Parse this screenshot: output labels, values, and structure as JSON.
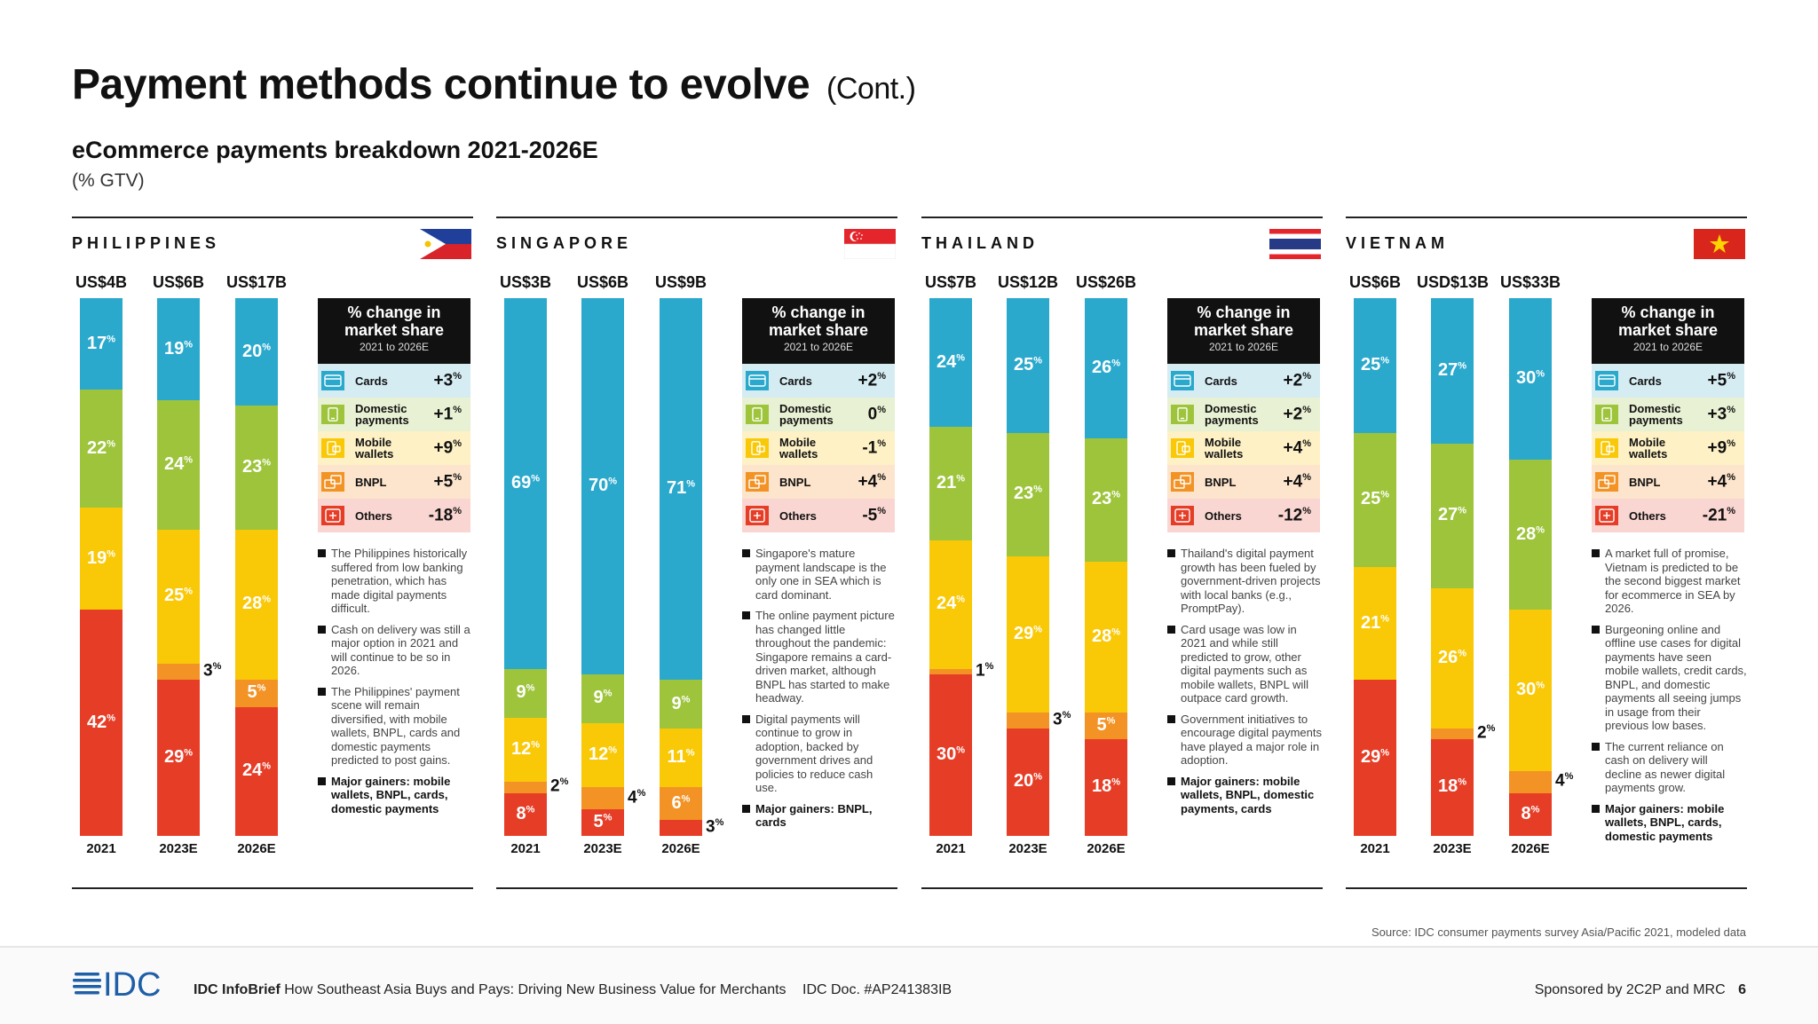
{
  "title": "Payment methods continue to evolve",
  "title_suffix": "(Cont.)",
  "subtitle": "eCommerce payments breakdown 2021-2026E",
  "unit_note": "(% GTV)",
  "colors": {
    "cards": "#2aa9cc",
    "domestic": "#9dc43b",
    "wallets": "#f9c806",
    "bnpl": "#f39325",
    "others": "#e63d27"
  },
  "legend_header": {
    "line1": "% change in",
    "line2": "market share",
    "range": "2021 to 2026E"
  },
  "legend_labels": [
    {
      "key": "cards",
      "line1": "Cards",
      "line2": ""
    },
    {
      "key": "domestic",
      "line1": "Domestic",
      "line2": "payments"
    },
    {
      "key": "wallets",
      "line1": "Mobile",
      "line2": "wallets"
    },
    {
      "key": "bnpl",
      "line1": "BNPL",
      "line2": ""
    },
    {
      "key": "others",
      "line1": "Others",
      "line2": ""
    }
  ],
  "chart_data": [
    {
      "type": "bar",
      "stacked": true,
      "country": "PHILIPPINES",
      "flag": "PH",
      "categories": [
        "2021",
        "2023E",
        "2026E"
      ],
      "gtv": [
        "US$4B",
        "US$6B",
        "US$17B"
      ],
      "series": [
        {
          "name": "Cards",
          "values": [
            17,
            19,
            20
          ]
        },
        {
          "name": "Domestic payments",
          "values": [
            22,
            24,
            23
          ]
        },
        {
          "name": "Mobile wallets",
          "values": [
            19,
            25,
            28
          ]
        },
        {
          "name": "BNPL",
          "values": [
            0,
            3,
            5
          ]
        },
        {
          "name": "Others",
          "values": [
            42,
            29,
            24
          ]
        }
      ],
      "change": [
        "+3",
        "+1",
        "+9",
        "+5",
        "-18"
      ],
      "notes": [
        {
          "text": "The Philippines historically suffered from low banking penetration, which has made digital payments difficult.",
          "bold": false
        },
        {
          "text": "Cash on delivery was still a major option in 2021 and will continue to be so in 2026.",
          "bold": false
        },
        {
          "text": "The Philippines' payment scene will remain diversified, with mobile wallets, BNPL, cards and domestic payments predicted to post gains.",
          "bold": false
        },
        {
          "text": "Major gainers: mobile wallets, BNPL, cards, domestic payments",
          "bold": true
        }
      ]
    },
    {
      "type": "bar",
      "stacked": true,
      "country": "SINGAPORE",
      "flag": "SG",
      "categories": [
        "2021",
        "2023E",
        "2026E"
      ],
      "gtv": [
        "US$3B",
        "US$6B",
        "US$9B"
      ],
      "series": [
        {
          "name": "Cards",
          "values": [
            69,
            70,
            71
          ]
        },
        {
          "name": "Domestic payments",
          "values": [
            9,
            9,
            9
          ]
        },
        {
          "name": "Mobile wallets",
          "values": [
            12,
            12,
            11
          ]
        },
        {
          "name": "BNPL",
          "values": [
            2,
            4,
            6
          ]
        },
        {
          "name": "Others",
          "values": [
            8,
            5,
            3
          ]
        }
      ],
      "change": [
        "+2",
        "0",
        "-1",
        "+4",
        "-5"
      ],
      "notes": [
        {
          "text": "Singapore's mature payment landscape is the only one in SEA which is card dominant.",
          "bold": false
        },
        {
          "text": "The online payment picture has changed little throughout the pandemic: Singapore remains a card-driven market, although BNPL has started to make headway.",
          "bold": false
        },
        {
          "text": "Digital payments will continue to grow in adoption, backed by government drives and policies to reduce cash use.",
          "bold": false
        },
        {
          "text": "Major gainers: BNPL, cards",
          "bold": true
        }
      ]
    },
    {
      "type": "bar",
      "stacked": true,
      "country": "THAILAND",
      "flag": "TH",
      "categories": [
        "2021",
        "2023E",
        "2026E"
      ],
      "gtv": [
        "US$7B",
        "US$12B",
        "US$26B"
      ],
      "series": [
        {
          "name": "Cards",
          "values": [
            24,
            25,
            26
          ]
        },
        {
          "name": "Domestic payments",
          "values": [
            21,
            23,
            23
          ]
        },
        {
          "name": "Mobile wallets",
          "values": [
            24,
            29,
            28
          ]
        },
        {
          "name": "BNPL",
          "values": [
            1,
            3,
            5
          ]
        },
        {
          "name": "Others",
          "values": [
            30,
            20,
            18
          ]
        }
      ],
      "change": [
        "+2",
        "+2",
        "+4",
        "+4",
        "-12"
      ],
      "notes": [
        {
          "text": "Thailand's digital payment growth has been fueled by government-driven projects with local banks (e.g., PromptPay).",
          "bold": false
        },
        {
          "text": "Card usage was low in 2021 and while still predicted to grow, other digital payments such as mobile wallets, BNPL will outpace card growth.",
          "bold": false
        },
        {
          "text": "Government initiatives to encourage digital payments have played a major role in adoption.",
          "bold": false
        },
        {
          "text": "Major gainers: mobile wallets, BNPL, domestic payments, cards",
          "bold": true
        }
      ]
    },
    {
      "type": "bar",
      "stacked": true,
      "country": "VIETNAM",
      "flag": "VN",
      "categories": [
        "2021",
        "2023E",
        "2026E"
      ],
      "gtv": [
        "US$6B",
        "USD$13B",
        "US$33B"
      ],
      "series": [
        {
          "name": "Cards",
          "values": [
            25,
            27,
            30
          ]
        },
        {
          "name": "Domestic payments",
          "values": [
            25,
            27,
            28
          ]
        },
        {
          "name": "Mobile wallets",
          "values": [
            21,
            26,
            30
          ]
        },
        {
          "name": "BNPL",
          "values": [
            0,
            2,
            4
          ]
        },
        {
          "name": "Others",
          "values": [
            29,
            18,
            8
          ]
        }
      ],
      "change": [
        "+5",
        "+3",
        "+9",
        "+4",
        "-21"
      ],
      "notes": [
        {
          "text": "A market full of promise, Vietnam is predicted to be the second biggest market for ecommerce in SEA by 2026.",
          "bold": false
        },
        {
          "text": "Burgeoning online and offline use cases for digital payments have seen mobile wallets, credit cards, BNPL, and domestic payments all seeing jumps in usage from their previous low bases.",
          "bold": false
        },
        {
          "text": "The current reliance on cash on delivery will decline as newer digital payments grow.",
          "bold": false
        },
        {
          "text": "Major gainers: mobile wallets, BNPL, cards, domestic payments",
          "bold": true
        }
      ]
    }
  ],
  "source": "Source: IDC consumer payments survey Asia/Pacific 2021, modeled data",
  "footer": {
    "logo_text": "IDC",
    "brief_label": "IDC InfoBrief",
    "brief_title": "How Southeast Asia Buys and Pays: Driving New Business Value for Merchants",
    "doc": "IDC Doc. #AP241383IB",
    "sponsor": "Sponsored by 2C2P and MRC",
    "page": "6"
  }
}
